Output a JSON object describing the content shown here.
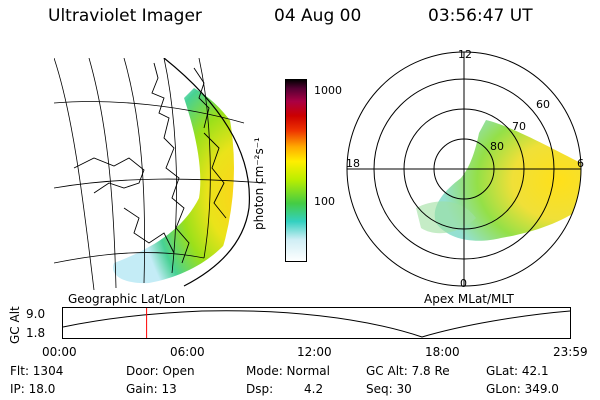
{
  "header": {
    "instrument": "Ultraviolet Imager",
    "date": "04 Aug 00",
    "time": "03:56:47 UT"
  },
  "colorbar": {
    "unit_label": "photon cm⁻²s⁻¹",
    "ticks": [
      "1000",
      "100"
    ]
  },
  "left_panel": {
    "caption": "Geographic Lat/Lon"
  },
  "right_panel": {
    "caption": "Apex MLat/MLT",
    "mlt_labels": {
      "top": "12",
      "left": "18",
      "right": "6",
      "bottom": "0"
    },
    "lat_labels": [
      "60",
      "70",
      "80"
    ]
  },
  "timeline": {
    "ylabel": "GC Alt",
    "yticks": [
      "9.0",
      "1.8"
    ],
    "xticks": [
      "00:00",
      "06:00",
      "12:00",
      "18:00",
      "23:59"
    ],
    "marker_hours": 3.95,
    "marker_color": "#ff0000"
  },
  "status": {
    "flt": "Flt: 1304",
    "ip": "IP: 18.0",
    "door": "Door: Open",
    "gain": "Gain: 13",
    "mode": "Mode: Normal",
    "dsp_label": "Dsp:",
    "dsp_value": "4.2",
    "gc_alt": "GC Alt: 7.8 Re",
    "seq": "Seq: 30",
    "glat": "GLat:  42.1",
    "glon": "GLon: 349.0"
  }
}
